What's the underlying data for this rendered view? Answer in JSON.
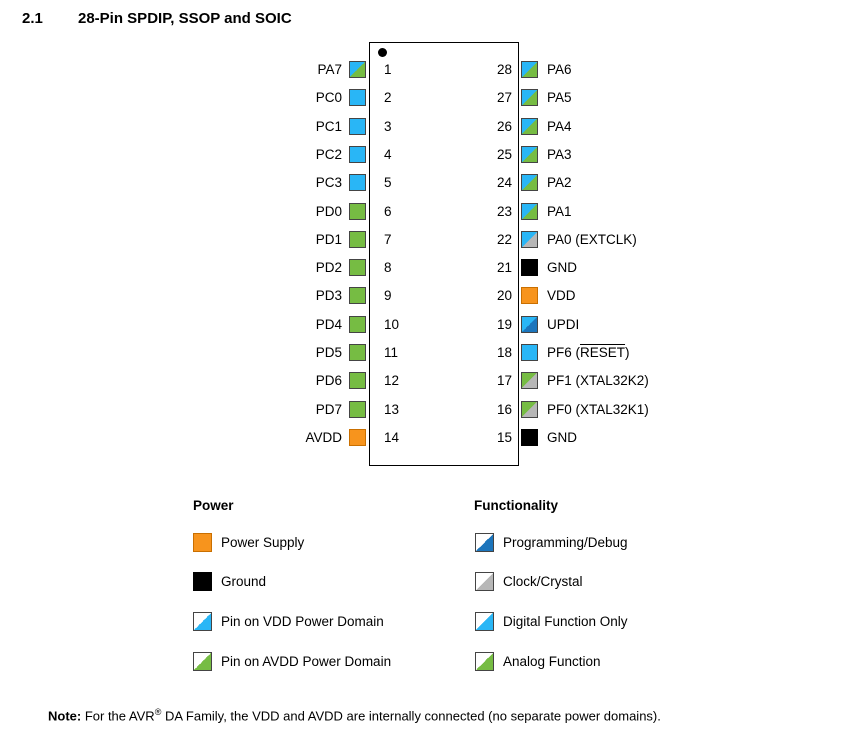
{
  "heading": {
    "number": "2.1",
    "title": "28-Pin SPDIP, SSOP and SOIC"
  },
  "colors": {
    "orange": "#F7941D",
    "black": "#000000",
    "cyan": "#29B6F6",
    "green": "#76BC43",
    "blue": "#1C75BC",
    "gray": "#B7B7B7"
  },
  "left_pins": [
    {
      "number": "1",
      "name": "PA7",
      "style": "cyan-green"
    },
    {
      "number": "2",
      "name": "PC0",
      "style": "cyan-cyan"
    },
    {
      "number": "3",
      "name": "PC1",
      "style": "cyan-cyan"
    },
    {
      "number": "4",
      "name": "PC2",
      "style": "cyan-cyan"
    },
    {
      "number": "5",
      "name": "PC3",
      "style": "cyan-cyan"
    },
    {
      "number": "6",
      "name": "PD0",
      "style": "green-green"
    },
    {
      "number": "7",
      "name": "PD1",
      "style": "green-green"
    },
    {
      "number": "8",
      "name": "PD2",
      "style": "green-green"
    },
    {
      "number": "9",
      "name": "PD3",
      "style": "green-green"
    },
    {
      "number": "10",
      "name": "PD4",
      "style": "green-green"
    },
    {
      "number": "11",
      "name": "PD5",
      "style": "green-green"
    },
    {
      "number": "12",
      "name": "PD6",
      "style": "green-green"
    },
    {
      "number": "13",
      "name": "PD7",
      "style": "green-green"
    },
    {
      "number": "14",
      "name": "AVDD",
      "style": "orange"
    }
  ],
  "right_pins": [
    {
      "number": "28",
      "name": "PA6",
      "name_suffix": "",
      "name_over": "",
      "name_tail": "",
      "style": "cyan-green"
    },
    {
      "number": "27",
      "name": "PA5",
      "name_suffix": "",
      "name_over": "",
      "name_tail": "",
      "style": "cyan-green"
    },
    {
      "number": "26",
      "name": "PA4",
      "name_suffix": "",
      "name_over": "",
      "name_tail": "",
      "style": "cyan-green"
    },
    {
      "number": "25",
      "name": "PA3",
      "name_suffix": "",
      "name_over": "",
      "name_tail": "",
      "style": "cyan-green"
    },
    {
      "number": "24",
      "name": "PA2",
      "name_suffix": "",
      "name_over": "",
      "name_tail": "",
      "style": "cyan-green"
    },
    {
      "number": "23",
      "name": "PA1",
      "name_suffix": "",
      "name_over": "",
      "name_tail": "",
      "style": "cyan-green"
    },
    {
      "number": "22",
      "name": "PA0 (EXTCLK)",
      "name_suffix": "",
      "name_over": "",
      "name_tail": "",
      "style": "cyan-gray"
    },
    {
      "number": "21",
      "name": "GND",
      "name_suffix": "",
      "name_over": "",
      "name_tail": "",
      "style": "black"
    },
    {
      "number": "20",
      "name": "VDD",
      "name_suffix": "",
      "name_over": "",
      "name_tail": "",
      "style": "orange"
    },
    {
      "number": "19",
      "name": "UPDI",
      "name_suffix": "",
      "name_over": "",
      "name_tail": "",
      "style": "cyan-blue"
    },
    {
      "number": "18",
      "name": "",
      "name_suffix": "PF6 (",
      "name_over": "RESET",
      "name_tail": ")",
      "style": "cyan-cyan"
    },
    {
      "number": "17",
      "name": "PF1 (XTAL32K2)",
      "name_suffix": "",
      "name_over": "",
      "name_tail": "",
      "style": "green-gray"
    },
    {
      "number": "16",
      "name": "PF0 (XTAL32K1)",
      "name_suffix": "",
      "name_over": "",
      "name_tail": "",
      "style": "green-gray"
    },
    {
      "number": "15",
      "name": "GND",
      "name_suffix": "",
      "name_over": "",
      "name_tail": "",
      "style": "black"
    }
  ],
  "legend": {
    "power_title": "Power",
    "functionality_title": "Functionality",
    "power_items": [
      {
        "label": "Power Supply",
        "style": "orange"
      },
      {
        "label": "Ground",
        "style": "black"
      },
      {
        "label": "Pin on VDD Power Domain",
        "style": "white-cyan"
      },
      {
        "label": "Pin on AVDD Power Domain",
        "style": "white-green"
      }
    ],
    "functionality_items": [
      {
        "label": "Programming/Debug",
        "style": "white-blue"
      },
      {
        "label": "Clock/Crystal",
        "style": "white-gray"
      },
      {
        "label": "Digital Function Only",
        "style": "white-cyan"
      },
      {
        "label": "Analog Function",
        "style": "white-green"
      }
    ]
  },
  "note": {
    "label": "Note:",
    "text_before": " For the AVR",
    "registered": "®",
    "text_after": " DA Family, the VDD and AVDD are internally connected (no separate power domains)."
  }
}
